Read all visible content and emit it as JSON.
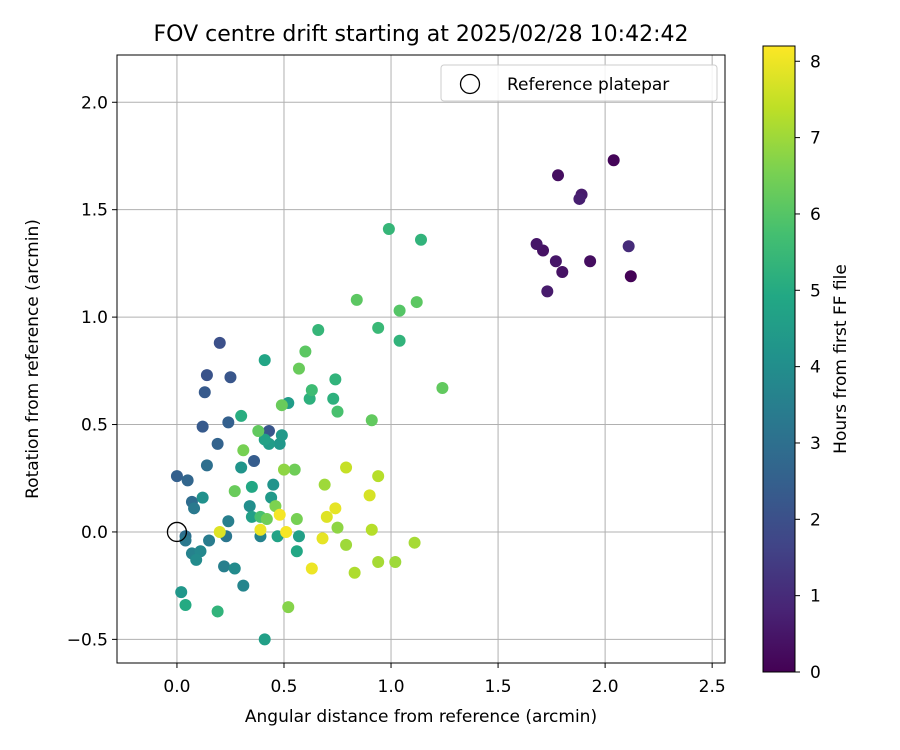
{
  "chart_data": {
    "type": "scatter",
    "title": "FOV centre drift starting at 2025/02/28 10:42:42",
    "xlabel": "Angular distance from reference (arcmin)",
    "ylabel": "Rotation from reference (arcmin)",
    "xlim": [
      -0.28,
      2.56
    ],
    "ylim": [
      -0.61,
      2.22
    ],
    "xticks": [
      0.0,
      0.5,
      1.0,
      1.5,
      2.0,
      2.5
    ],
    "yticks": [
      -0.5,
      0.0,
      0.5,
      1.0,
      1.5,
      2.0
    ],
    "xtick_labels": [
      "0.0",
      "0.5",
      "1.0",
      "1.5",
      "2.0",
      "2.5"
    ],
    "ytick_labels": [
      "−0.5",
      "0.0",
      "0.5",
      "1.0",
      "1.5",
      "2.0"
    ],
    "grid": true,
    "legend": {
      "position": "top-right",
      "label": "Reference platepar",
      "marker": "open-circle"
    },
    "reference_point": {
      "x": 0.0,
      "y": 0.0
    },
    "colorbar": {
      "label": "Hours from first FF file",
      "colormap": "viridis",
      "range": [
        0,
        8.2
      ],
      "ticks": [
        0,
        1,
        2,
        3,
        4,
        5,
        6,
        7,
        8
      ],
      "tick_labels": [
        "0",
        "1",
        "2",
        "3",
        "4",
        "5",
        "6",
        "7",
        "8"
      ]
    },
    "points": [
      {
        "x": 2.04,
        "y": 1.73,
        "hours": 0.1
      },
      {
        "x": 1.78,
        "y": 1.66,
        "hours": 0.3
      },
      {
        "x": 1.89,
        "y": 1.57,
        "hours": 0.6
      },
      {
        "x": 1.88,
        "y": 1.55,
        "hours": 0.7
      },
      {
        "x": 1.68,
        "y": 1.34,
        "hours": 0.5
      },
      {
        "x": 1.71,
        "y": 1.31,
        "hours": 0.4
      },
      {
        "x": 2.11,
        "y": 1.33,
        "hours": 1.0
      },
      {
        "x": 1.77,
        "y": 1.26,
        "hours": 0.5
      },
      {
        "x": 1.93,
        "y": 1.26,
        "hours": 0.3
      },
      {
        "x": 1.8,
        "y": 1.21,
        "hours": 0.4
      },
      {
        "x": 2.12,
        "y": 1.19,
        "hours": 0.05
      },
      {
        "x": 1.73,
        "y": 1.12,
        "hours": 0.6
      },
      {
        "x": 0.2,
        "y": 0.88,
        "hours": 2.0
      },
      {
        "x": 0.14,
        "y": 0.73,
        "hours": 2.1
      },
      {
        "x": 0.25,
        "y": 0.72,
        "hours": 2.2
      },
      {
        "x": 0.13,
        "y": 0.65,
        "hours": 2.3
      },
      {
        "x": 0.12,
        "y": 0.49,
        "hours": 2.3
      },
      {
        "x": 0.24,
        "y": 0.51,
        "hours": 2.5
      },
      {
        "x": 0.19,
        "y": 0.41,
        "hours": 2.6
      },
      {
        "x": 0.36,
        "y": 0.33,
        "hours": 2.4
      },
      {
        "x": 0.43,
        "y": 0.47,
        "hours": 2.2
      },
      {
        "x": 0.14,
        "y": 0.31,
        "hours": 3.0
      },
      {
        "x": -0.0,
        "y": 0.26,
        "hours": 2.5
      },
      {
        "x": 0.05,
        "y": 0.24,
        "hours": 2.7
      },
      {
        "x": 0.07,
        "y": 0.14,
        "hours": 2.9
      },
      {
        "x": 0.08,
        "y": 0.11,
        "hours": 3.3
      },
      {
        "x": 0.12,
        "y": 0.16,
        "hours": 4.1
      },
      {
        "x": 0.04,
        "y": -0.02,
        "hours": 3.0
      },
      {
        "x": 0.04,
        "y": -0.04,
        "hours": 3.3
      },
      {
        "x": 0.07,
        "y": -0.1,
        "hours": 3.6
      },
      {
        "x": 0.09,
        "y": -0.13,
        "hours": 3.9
      },
      {
        "x": 0.11,
        "y": -0.09,
        "hours": 3.8
      },
      {
        "x": 0.15,
        "y": -0.04,
        "hours": 3.4
      },
      {
        "x": 0.22,
        "y": -0.16,
        "hours": 3.5
      },
      {
        "x": 0.23,
        "y": -0.02,
        "hours": 3.2
      },
      {
        "x": 0.24,
        "y": 0.05,
        "hours": 3.5
      },
      {
        "x": 0.27,
        "y": -0.17,
        "hours": 3.9
      },
      {
        "x": 0.31,
        "y": -0.25,
        "hours": 3.7
      },
      {
        "x": 0.02,
        "y": -0.28,
        "hours": 4.3
      },
      {
        "x": 0.04,
        "y": -0.34,
        "hours": 5.0
      },
      {
        "x": 0.19,
        "y": -0.37,
        "hours": 5.3
      },
      {
        "x": 0.41,
        "y": -0.5,
        "hours": 4.6
      },
      {
        "x": 0.3,
        "y": 0.3,
        "hours": 4.2
      },
      {
        "x": 0.3,
        "y": 0.54,
        "hours": 5.1
      },
      {
        "x": 0.41,
        "y": 0.8,
        "hours": 4.8
      },
      {
        "x": 0.52,
        "y": 0.6,
        "hours": 4.5
      },
      {
        "x": 0.35,
        "y": 0.21,
        "hours": 4.9
      },
      {
        "x": 0.34,
        "y": 0.12,
        "hours": 4.0
      },
      {
        "x": 0.35,
        "y": 0.07,
        "hours": 4.6
      },
      {
        "x": 0.39,
        "y": -0.02,
        "hours": 3.6
      },
      {
        "x": 0.45,
        "y": 0.22,
        "hours": 4.2
      },
      {
        "x": 0.44,
        "y": 0.16,
        "hours": 4.4
      },
      {
        "x": 0.49,
        "y": 0.45,
        "hours": 4.4
      },
      {
        "x": 0.41,
        "y": 0.43,
        "hours": 4.7
      },
      {
        "x": 0.43,
        "y": 0.41,
        "hours": 4.5
      },
      {
        "x": 0.48,
        "y": 0.41,
        "hours": 4.3
      },
      {
        "x": 0.47,
        "y": -0.02,
        "hours": 4.7
      },
      {
        "x": 0.56,
        "y": -0.09,
        "hours": 4.9
      },
      {
        "x": 0.57,
        "y": -0.02,
        "hours": 4.6
      },
      {
        "x": 0.62,
        "y": 0.62,
        "hours": 5.2
      },
      {
        "x": 0.63,
        "y": 0.66,
        "hours": 5.6
      },
      {
        "x": 0.66,
        "y": 0.94,
        "hours": 5.4
      },
      {
        "x": 0.74,
        "y": 0.71,
        "hours": 5.3
      },
      {
        "x": 0.73,
        "y": 0.62,
        "hours": 5.2
      },
      {
        "x": 0.75,
        "y": 0.56,
        "hours": 5.8
      },
      {
        "x": 0.99,
        "y": 1.41,
        "hours": 5.4
      },
      {
        "x": 1.14,
        "y": 1.36,
        "hours": 5.3
      },
      {
        "x": 0.94,
        "y": 0.95,
        "hours": 5.5
      },
      {
        "x": 1.04,
        "y": 0.89,
        "hours": 5.3
      },
      {
        "x": 0.6,
        "y": 0.84,
        "hours": 6.1
      },
      {
        "x": 0.57,
        "y": 0.76,
        "hours": 6.3
      },
      {
        "x": 0.49,
        "y": 0.59,
        "hours": 6.3
      },
      {
        "x": 0.84,
        "y": 1.08,
        "hours": 6.1
      },
      {
        "x": 1.04,
        "y": 1.03,
        "hours": 6.0
      },
      {
        "x": 1.12,
        "y": 1.07,
        "hours": 6.1
      },
      {
        "x": 1.24,
        "y": 0.67,
        "hours": 6.2
      },
      {
        "x": 0.91,
        "y": 0.52,
        "hours": 6.2
      },
      {
        "x": 0.38,
        "y": 0.47,
        "hours": 6.2
      },
      {
        "x": 0.31,
        "y": 0.38,
        "hours": 6.5
      },
      {
        "x": 0.27,
        "y": 0.19,
        "hours": 6.3
      },
      {
        "x": 0.39,
        "y": 0.07,
        "hours": 5.8
      },
      {
        "x": 0.42,
        "y": 0.06,
        "hours": 6.4
      },
      {
        "x": 0.46,
        "y": 0.12,
        "hours": 6.6
      },
      {
        "x": 0.5,
        "y": 0.29,
        "hours": 6.8
      },
      {
        "x": 0.55,
        "y": 0.29,
        "hours": 6.4
      },
      {
        "x": 0.56,
        "y": 0.06,
        "hours": 6.5
      },
      {
        "x": 0.52,
        "y": -0.35,
        "hours": 6.7
      },
      {
        "x": 0.69,
        "y": 0.22,
        "hours": 7.0
      },
      {
        "x": 0.75,
        "y": 0.02,
        "hours": 6.8
      },
      {
        "x": 0.79,
        "y": 0.3,
        "hours": 7.5
      },
      {
        "x": 0.79,
        "y": -0.06,
        "hours": 7.0
      },
      {
        "x": 0.83,
        "y": -0.19,
        "hours": 7.2
      },
      {
        "x": 0.9,
        "y": 0.17,
        "hours": 7.7
      },
      {
        "x": 0.91,
        "y": 0.01,
        "hours": 7.3
      },
      {
        "x": 0.94,
        "y": 0.26,
        "hours": 7.3
      },
      {
        "x": 0.94,
        "y": -0.14,
        "hours": 7.1
      },
      {
        "x": 1.02,
        "y": -0.14,
        "hours": 7.0
      },
      {
        "x": 1.11,
        "y": -0.05,
        "hours": 7.1
      },
      {
        "x": 0.7,
        "y": 0.07,
        "hours": 7.8
      },
      {
        "x": 0.74,
        "y": 0.11,
        "hours": 7.9
      },
      {
        "x": 0.68,
        "y": -0.03,
        "hours": 7.9
      },
      {
        "x": 0.63,
        "y": -0.17,
        "hours": 8.0
      },
      {
        "x": 0.51,
        "y": -0.0,
        "hours": 8.1
      },
      {
        "x": 0.48,
        "y": 0.08,
        "hours": 8.1
      },
      {
        "x": 0.39,
        "y": 0.01,
        "hours": 8.0
      },
      {
        "x": 0.2,
        "y": 0.0,
        "hours": 7.8
      }
    ]
  }
}
